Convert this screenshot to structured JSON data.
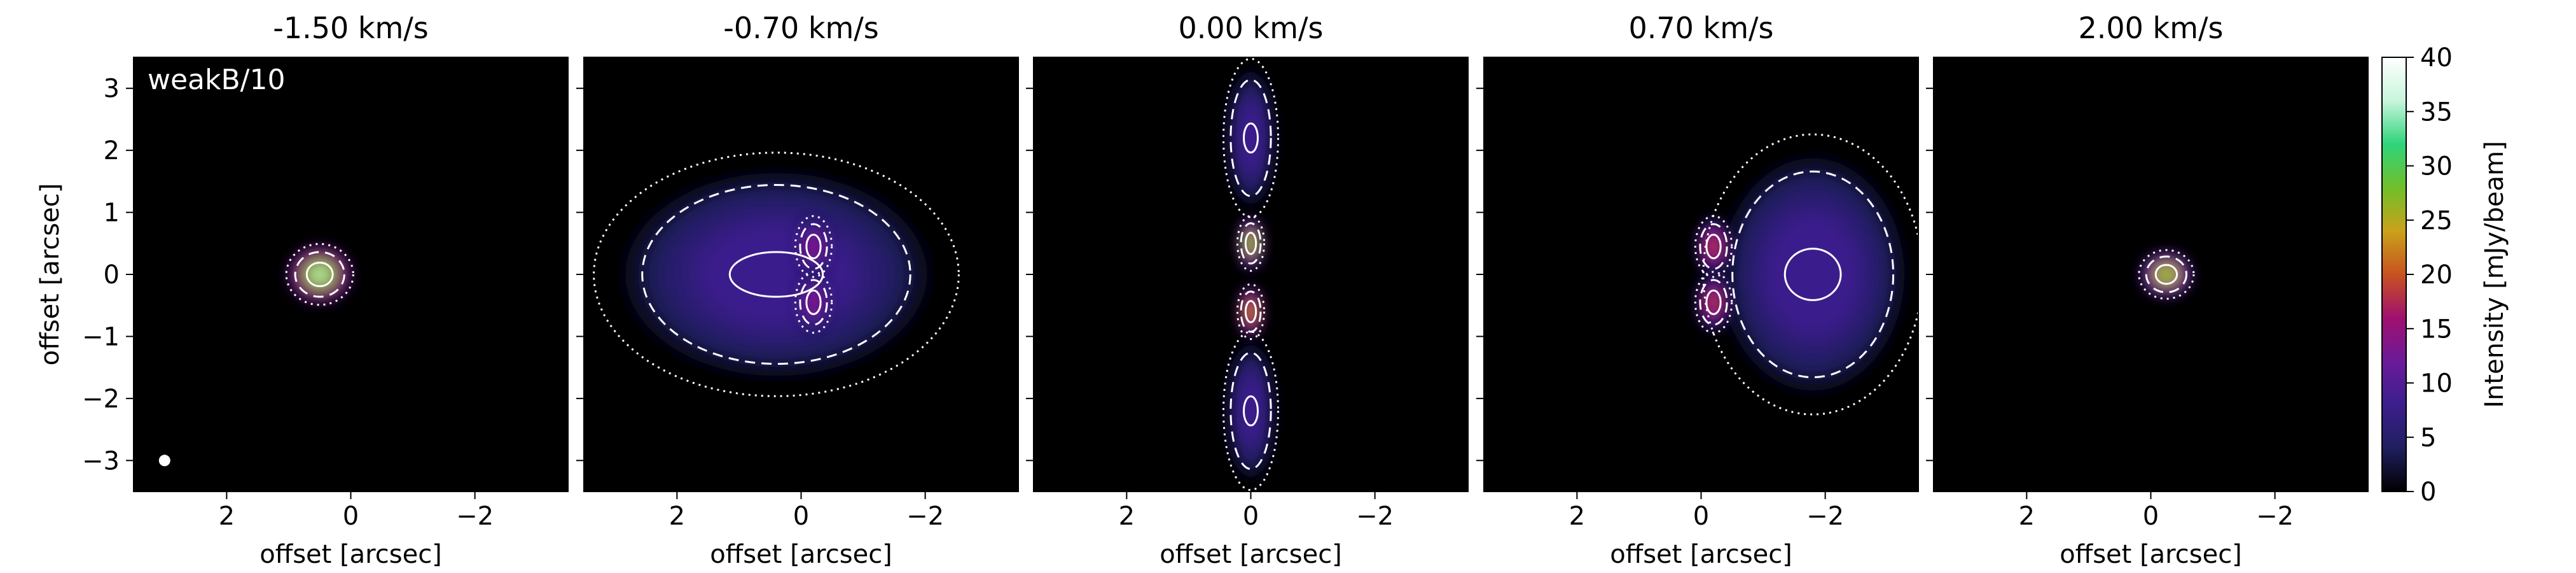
{
  "chart_data": {
    "type": "heatmap",
    "panels": [
      {
        "title": "-1.50 km/s",
        "label": "weakB/10",
        "beam": true,
        "show_ylabel": true
      },
      {
        "title": "-0.70 km/s",
        "label": "",
        "beam": false,
        "show_ylabel": false
      },
      {
        "title": "0.00 km/s",
        "label": "",
        "beam": false,
        "show_ylabel": false
      },
      {
        "title": "0.70 km/s",
        "label": "",
        "beam": false,
        "show_ylabel": false
      },
      {
        "title": "2.00 km/s",
        "label": "",
        "beam": false,
        "show_ylabel": false
      }
    ],
    "xlabel": "offset [arcsec]",
    "ylabel": "offset [arcsec]",
    "xlim": [
      3.5,
      -3.5
    ],
    "ylim": [
      -3.5,
      3.5
    ],
    "xticks": [
      2,
      0,
      -2
    ],
    "xtick_labels": [
      "2",
      "0",
      "−2"
    ],
    "yticks": [
      -3,
      -2,
      -1,
      0,
      1,
      2,
      3
    ],
    "ytick_labels": [
      "−3",
      "−2",
      "−1",
      "0",
      "1",
      "2",
      "3"
    ],
    "colorbar": {
      "label": "Intensity [mJy/beam]",
      "range": [
        0,
        40
      ],
      "ticks": [
        0,
        5,
        10,
        15,
        20,
        25,
        30,
        35,
        40
      ],
      "tick_labels": [
        "0",
        "5",
        "10",
        "15",
        "20",
        "25",
        "30",
        "35",
        "40"
      ],
      "colormap": [
        "#000000",
        "#1f1f5e",
        "#3b1f8c",
        "#6b1a99",
        "#a0106e",
        "#c8521f",
        "#c9a21a",
        "#6fbf2a",
        "#2fd47a",
        "#c8f5dc",
        "#ffffff"
      ]
    },
    "contour_styles": [
      "dotted",
      "dashed",
      "solid"
    ],
    "emission": [
      {
        "panel": 0,
        "blobs": [
          {
            "x": 0.5,
            "y": 0.0,
            "rx": 0.55,
            "ry": 0.5,
            "peak": 38
          }
        ]
      },
      {
        "panel": 1,
        "blobs": [
          {
            "x": 0.4,
            "y": 0.0,
            "rx": 3.0,
            "ry": 2.0,
            "peak": 8
          },
          {
            "x": -0.2,
            "y": 0.45,
            "rx": 0.3,
            "ry": 0.5,
            "peak": 16
          },
          {
            "x": -0.2,
            "y": -0.45,
            "rx": 0.3,
            "ry": 0.5,
            "peak": 16
          }
        ]
      },
      {
        "panel": 2,
        "blobs": [
          {
            "x": 0.0,
            "y": 2.2,
            "rx": 0.45,
            "ry": 1.3,
            "peak": 9
          },
          {
            "x": 0.0,
            "y": -2.2,
            "rx": 0.45,
            "ry": 1.3,
            "peak": 9
          },
          {
            "x": 0.0,
            "y": 0.5,
            "rx": 0.22,
            "ry": 0.45,
            "peak": 30
          },
          {
            "x": 0.0,
            "y": -0.6,
            "rx": 0.22,
            "ry": 0.45,
            "peak": 25
          }
        ]
      },
      {
        "panel": 3,
        "blobs": [
          {
            "x": -1.8,
            "y": 0.0,
            "rx": 1.8,
            "ry": 2.3,
            "peak": 8
          },
          {
            "x": -0.2,
            "y": 0.45,
            "rx": 0.3,
            "ry": 0.5,
            "peak": 20
          },
          {
            "x": -0.2,
            "y": -0.45,
            "rx": 0.3,
            "ry": 0.5,
            "peak": 20
          }
        ]
      },
      {
        "panel": 4,
        "blobs": [
          {
            "x": -0.25,
            "y": 0.0,
            "rx": 0.45,
            "ry": 0.4,
            "peak": 30
          }
        ]
      }
    ]
  }
}
